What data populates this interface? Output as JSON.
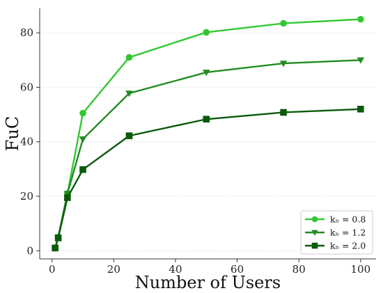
{
  "chart_data": {
    "type": "line",
    "xlabel": "Number of Users",
    "ylabel": "FuC",
    "xlim": [
      -4,
      105
    ],
    "ylim": [
      -3,
      89
    ],
    "xticks": [
      0,
      20,
      40,
      60,
      80,
      100
    ],
    "yticks": [
      0,
      20,
      40,
      60,
      80
    ],
    "grid": "horizontal, light dotted",
    "legend_placement": "bottom-right",
    "x": [
      1,
      2,
      5,
      10,
      25,
      50,
      75,
      100
    ],
    "series": [
      {
        "name": "kₙ = 0.8",
        "color": "#32c832",
        "marker": "circle",
        "values": [
          1,
          5,
          21,
          50.5,
          71,
          80.2,
          83.5,
          85
        ]
      },
      {
        "name": "kₙ = 1.2",
        "color": "#228b22",
        "marker": "triangle-down",
        "values": [
          1,
          5,
          21,
          41,
          57.8,
          65.5,
          68.8,
          70
        ]
      },
      {
        "name": "kₙ = 2.0",
        "color": "#0a5a0a",
        "marker": "square",
        "values": [
          1,
          4.7,
          19.5,
          29.8,
          42.2,
          48.3,
          50.8,
          52
        ]
      }
    ]
  }
}
